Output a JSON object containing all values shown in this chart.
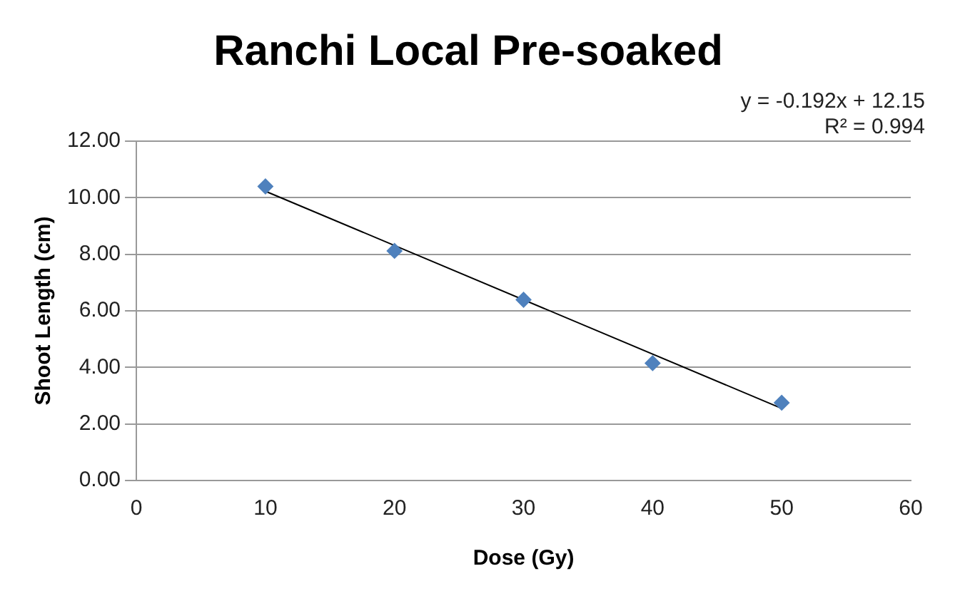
{
  "chart_data": {
    "type": "scatter",
    "title": "Ranchi Local Pre-soaked",
    "xlabel": "Dose (Gy)",
    "ylabel": "Shoot Length (cm)",
    "x": [
      10,
      20,
      30,
      40,
      50
    ],
    "series": [
      {
        "color": "#4f81bd",
        "values": [
          10.4,
          8.12,
          6.39,
          4.15,
          2.75
        ]
      },
      {
        "type": "line",
        "marker": "none",
        "color": "#000000",
        "x": [
          10,
          50
        ],
        "values": [
          10.23,
          2.55
        ]
      }
    ],
    "annotations": [
      "y = -0.192x + 12.15",
      "R² = 0.994"
    ],
    "xlim": [
      0,
      60
    ],
    "xticks": [
      0,
      10,
      20,
      30,
      40,
      50,
      60
    ],
    "ylim": [
      0,
      12
    ],
    "yticks": [
      {
        "value": 0,
        "label": "0.00"
      },
      {
        "value": 2,
        "label": "2.00"
      },
      {
        "value": 4,
        "label": "4.00"
      },
      {
        "value": 6,
        "label": "6.00"
      },
      {
        "value": 8,
        "label": "8.00"
      },
      {
        "value": 10,
        "label": "10.00"
      },
      {
        "value": 12,
        "label": "12.00"
      }
    ],
    "grid": "y",
    "marker": "diamond",
    "legend": false
  }
}
